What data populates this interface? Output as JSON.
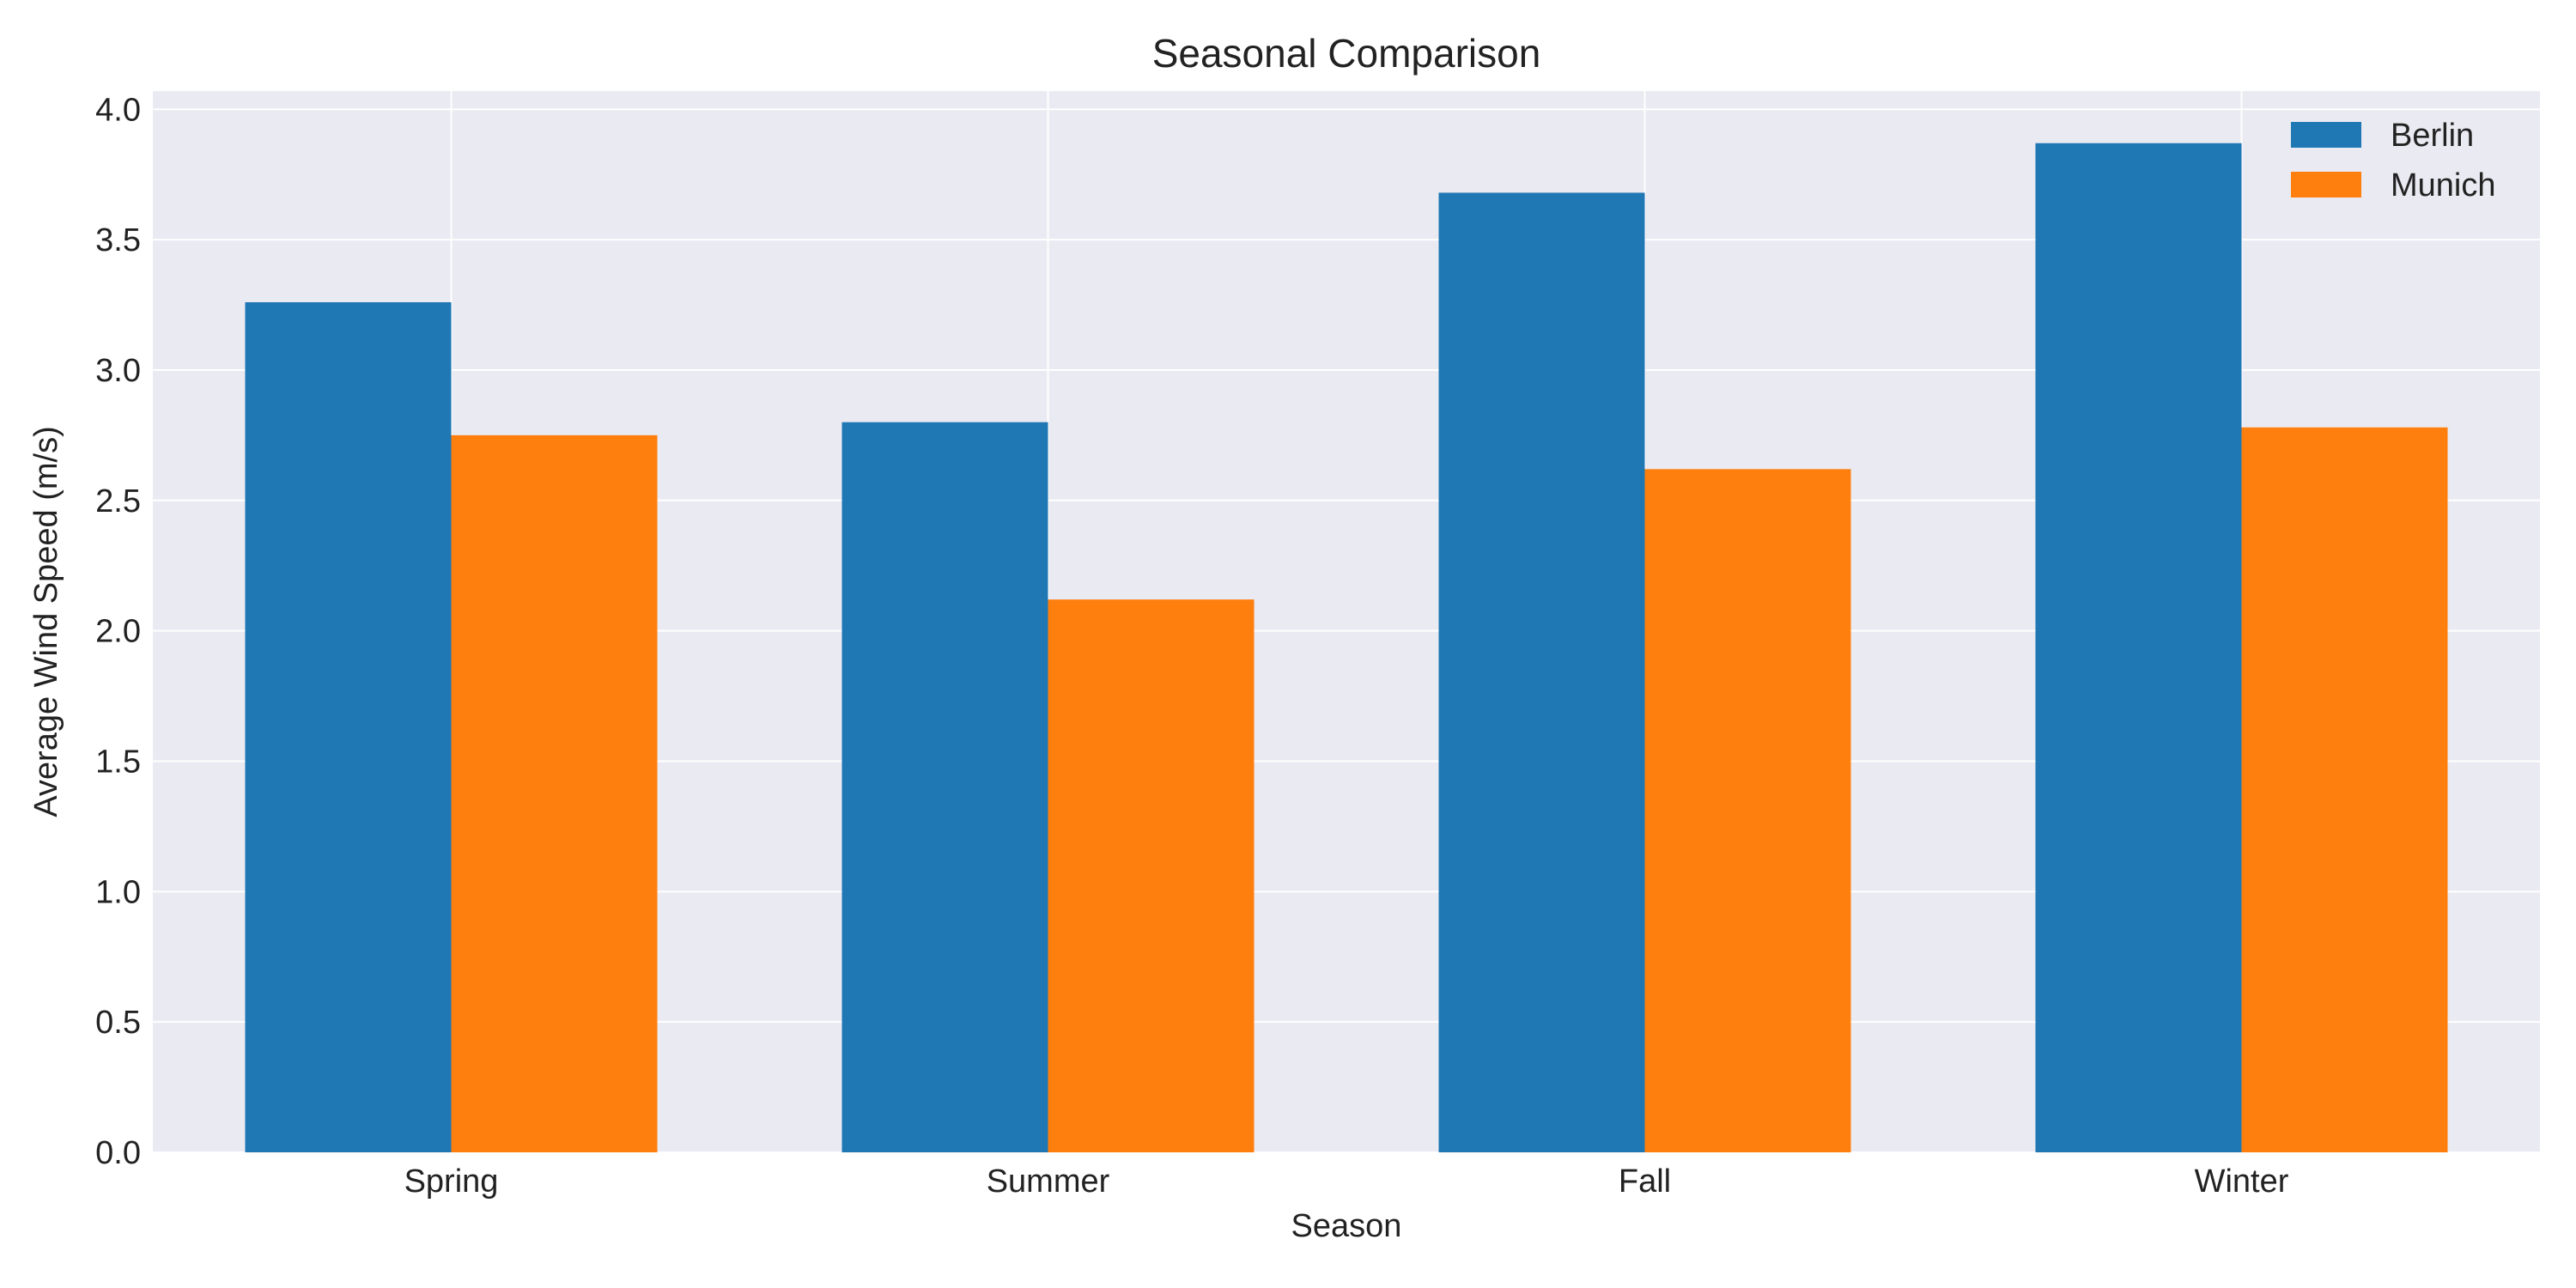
{
  "chart_data": {
    "type": "bar",
    "title": "Seasonal Comparison",
    "xlabel": "Season",
    "ylabel": "Average Wind Speed (m/s)",
    "categories": [
      "Spring",
      "Summer",
      "Fall",
      "Winter"
    ],
    "series": [
      {
        "name": "Berlin",
        "color": "#1f77b4",
        "values": [
          3.26,
          2.8,
          3.68,
          3.87
        ]
      },
      {
        "name": "Munich",
        "color": "#ff7f0e",
        "values": [
          2.75,
          2.12,
          2.62,
          2.78
        ]
      }
    ],
    "ylim": [
      0,
      4.07
    ],
    "yticks": [
      "0.0",
      "0.5",
      "1.0",
      "1.5",
      "2.0",
      "2.5",
      "3.0",
      "3.5",
      "4.0"
    ],
    "grid": true,
    "legend_position": "top-right",
    "background": "#eaeaf2"
  }
}
